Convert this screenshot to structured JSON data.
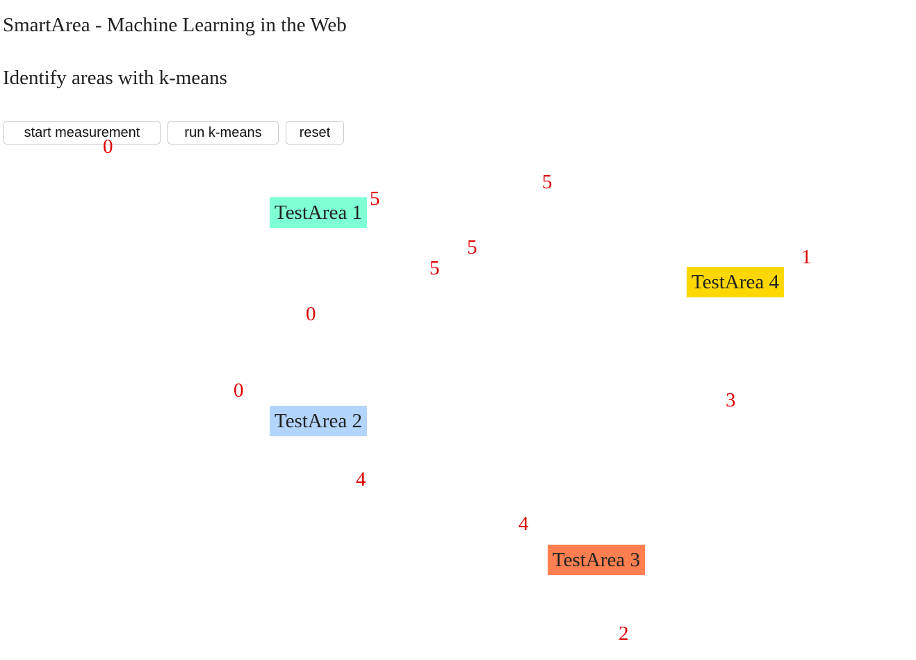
{
  "page": {
    "title": "SmartArea - Machine Learning in the Web",
    "subtitle": "Identify areas with k-means"
  },
  "toolbar": {
    "start_label": "start measurement",
    "kmeans_label": "run k-means",
    "reset_label": "reset"
  },
  "areas": [
    {
      "label": "TestArea 1",
      "color": "#7fffd4"
    },
    {
      "label": "TestArea 2",
      "color": "#b3d4fc"
    },
    {
      "label": "TestArea 3",
      "color": "#ff7f50"
    },
    {
      "label": "TestArea 4",
      "color": "#ffd700"
    }
  ],
  "points": [
    {
      "label": "0"
    },
    {
      "label": "5"
    },
    {
      "label": "5"
    },
    {
      "label": "5"
    },
    {
      "label": "5"
    },
    {
      "label": "1"
    },
    {
      "label": "0"
    },
    {
      "label": "0"
    },
    {
      "label": "3"
    },
    {
      "label": "4"
    },
    {
      "label": "4"
    },
    {
      "label": "2"
    }
  ],
  "point_color": "#e00000"
}
